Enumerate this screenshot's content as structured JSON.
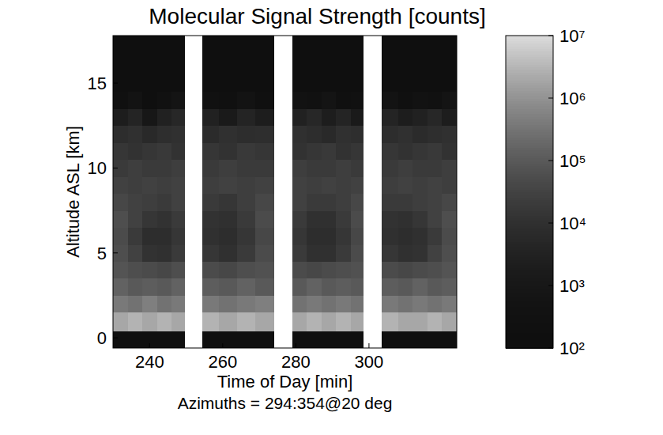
{
  "chart_data": {
    "type": "heatmap",
    "title": "Molecular Signal Strength [counts]",
    "xlabel": "Time of Day [min]",
    "ylabel": "Altitude ASL [km]",
    "annotations": [
      "Azimuths = 294:354@20 deg"
    ],
    "x_edges": [
      230,
      234,
      238,
      242,
      246,
      249.5,
      254.5,
      259,
      264,
      269,
      274,
      279,
      283,
      287,
      291,
      295,
      298.5,
      303.5,
      308,
      312,
      316,
      320,
      324
    ],
    "y_edges": [
      -0.6,
      0.4,
      1.5,
      2.5,
      3.5,
      4.5,
      5.5,
      6.5,
      7.5,
      8.5,
      9.5,
      10.5,
      11.5,
      12.5,
      13.5,
      14.5,
      15.5,
      17.8
    ],
    "cells": [
      [
        100,
        100,
        100,
        100,
        100,
        null,
        100,
        100,
        100,
        100,
        null,
        100,
        100,
        100,
        100,
        100,
        null,
        100,
        100,
        100,
        100,
        100
      ],
      [
        2000000.0,
        3000000.0,
        2000000.0,
        3000000.0,
        2000000.0,
        null,
        3000000.0,
        2000000.0,
        3000000.0,
        2000000.0,
        null,
        2000000.0,
        3000000.0,
        2000000.0,
        3000000.0,
        2000000.0,
        null,
        3000000.0,
        2000000.0,
        2000000.0,
        3000000.0,
        2000000.0
      ],
      [
        400000.0,
        300000.0,
        500000.0,
        300000.0,
        400000.0,
        null,
        400000.0,
        300000.0,
        400000.0,
        500000.0,
        null,
        300000.0,
        400000.0,
        300000.0,
        400000.0,
        300000.0,
        null,
        400000.0,
        300000.0,
        400000.0,
        300000.0,
        400000.0
      ],
      [
        150000.0,
        100000.0,
        120000.0,
        100000.0,
        150000.0,
        null,
        120000.0,
        100000.0,
        150000.0,
        100000.0,
        null,
        100000.0,
        150000.0,
        100000.0,
        120000.0,
        100000.0,
        null,
        120000.0,
        100000.0,
        150000.0,
        100000.0,
        120000.0
      ],
      [
        80000.0,
        60000.0,
        50000.0,
        40000.0,
        60000.0,
        null,
        50000.0,
        40000.0,
        60000.0,
        70000.0,
        null,
        50000.0,
        40000.0,
        50000.0,
        60000.0,
        70000.0,
        null,
        50000.0,
        40000.0,
        50000.0,
        60000.0,
        80000.0
      ],
      [
        60000.0,
        30000.0,
        12000.0,
        10000.0,
        20000.0,
        null,
        15000.0,
        10000.0,
        20000.0,
        50000.0,
        null,
        20000.0,
        10000.0,
        10000.0,
        20000.0,
        50000.0,
        null,
        15000.0,
        10000.0,
        12000.0,
        30000.0,
        60000.0
      ],
      [
        50000.0,
        20000.0,
        8000.0,
        8000.0,
        15000.0,
        null,
        10000.0,
        8000.0,
        15000.0,
        40000.0,
        null,
        15000.0,
        8000.0,
        8000.0,
        15000.0,
        40000.0,
        null,
        10000.0,
        8000.0,
        10000.0,
        20000.0,
        50000.0
      ],
      [
        60000.0,
        30000.0,
        15000.0,
        12000.0,
        20000.0,
        null,
        12000.0,
        10000.0,
        20000.0,
        50000.0,
        null,
        20000.0,
        10000.0,
        10000.0,
        20000.0,
        50000.0,
        null,
        12000.0,
        10000.0,
        15000.0,
        30000.0,
        60000.0
      ],
      [
        40000.0,
        30000.0,
        25000.0,
        20000.0,
        30000.0,
        null,
        20000.0,
        15000.0,
        25000.0,
        40000.0,
        null,
        30000.0,
        20000.0,
        20000.0,
        25000.0,
        40000.0,
        null,
        20000.0,
        20000.0,
        25000.0,
        30000.0,
        40000.0
      ],
      [
        30000.0,
        25000.0,
        30000.0,
        25000.0,
        30000.0,
        null,
        25000.0,
        30000.0,
        25000.0,
        30000.0,
        null,
        30000.0,
        25000.0,
        30000.0,
        25000.0,
        30000.0,
        null,
        25000.0,
        30000.0,
        25000.0,
        30000.0,
        25000.0
      ],
      [
        20000.0,
        25000.0,
        20000.0,
        20000.0,
        25000.0,
        null,
        20000.0,
        25000.0,
        20000.0,
        20000.0,
        null,
        25000.0,
        20000.0,
        20000.0,
        25000.0,
        20000.0,
        null,
        20000.0,
        25000.0,
        20000.0,
        20000.0,
        25000.0
      ],
      [
        15000.0,
        12000.0,
        15000.0,
        18000.0,
        12000.0,
        null,
        15000.0,
        12000.0,
        18000.0,
        15000.0,
        null,
        12000.0,
        15000.0,
        18000.0,
        12000.0,
        15000.0,
        null,
        15000.0,
        12000.0,
        15000.0,
        18000.0,
        12000.0
      ],
      [
        8000.0,
        10000.0,
        6000.0,
        9000.0,
        10000.0,
        null,
        7000.0,
        10000.0,
        8000.0,
        9000.0,
        null,
        10000.0,
        8000.0,
        6000.0,
        10000.0,
        9000.0,
        null,
        8000.0,
        10000.0,
        7000.0,
        9000.0,
        10000.0
      ],
      [
        2000.0,
        4000.0,
        1000.0,
        3000.0,
        5000.0,
        null,
        3000.0,
        1500.0,
        4000.0,
        2000.0,
        null,
        3000.0,
        5000.0,
        2000.0,
        4000.0,
        1500.0,
        null,
        4000.0,
        2000.0,
        3000.0,
        5000.0,
        2000.0
      ],
      [
        200,
        500,
        150,
        300,
        600,
        null,
        300,
        200,
        500,
        250,
        null,
        400,
        300,
        600,
        200,
        350,
        null,
        500,
        250,
        400,
        300,
        600
      ],
      [
        100,
        100,
        100,
        100,
        100,
        null,
        100,
        100,
        100,
        100,
        null,
        100,
        100,
        100,
        100,
        100,
        null,
        100,
        100,
        100,
        100,
        100
      ],
      [
        100,
        100,
        100,
        100,
        100,
        null,
        100,
        100,
        100,
        100,
        null,
        100,
        100,
        100,
        100,
        100,
        null,
        100,
        100,
        100,
        100,
        100
      ]
    ],
    "xlim": [
      230,
      324
    ],
    "ylim": [
      -0.6,
      17.8
    ],
    "xticks": [
      240,
      260,
      280,
      300
    ],
    "yticks": [
      0,
      5,
      10,
      15
    ],
    "colorbar_range": [
      100,
      10000000
    ],
    "colorbar_ticks": [
      {
        "value": 100,
        "label": "10²"
      },
      {
        "value": 1000,
        "label": "10³"
      },
      {
        "value": 10000,
        "label": "10⁴"
      },
      {
        "value": 100000,
        "label": "10⁵"
      },
      {
        "value": 1000000,
        "label": "10⁶"
      },
      {
        "value": 10000000,
        "label": "10⁷"
      }
    ]
  }
}
